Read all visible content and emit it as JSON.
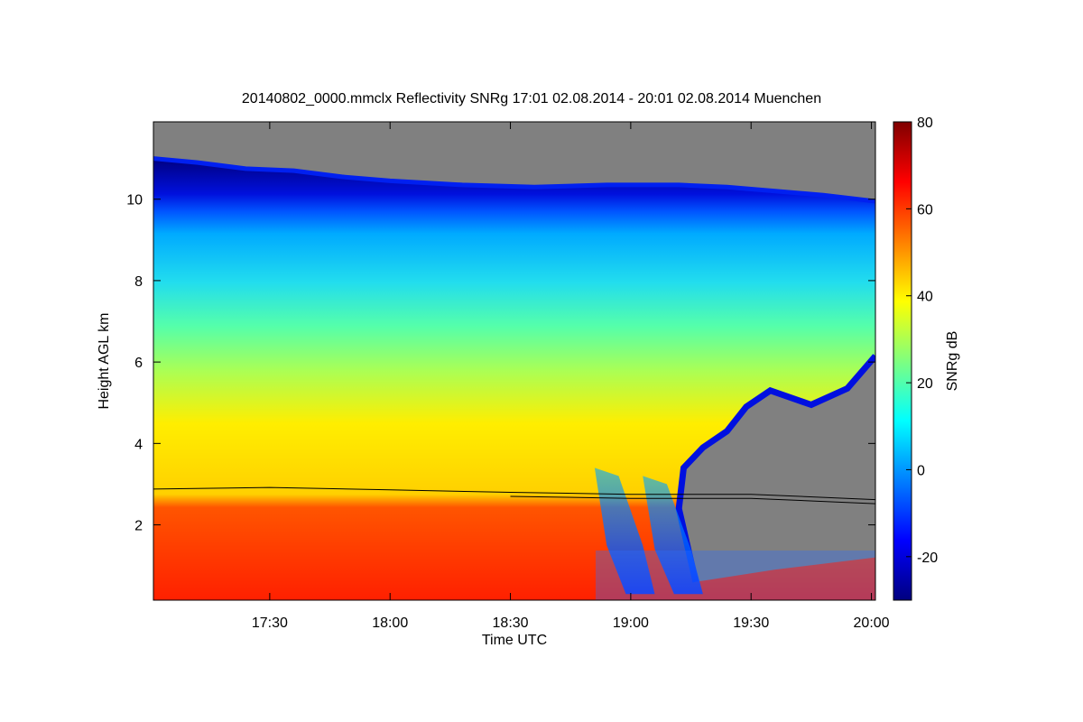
{
  "chart_data": {
    "type": "heatmap",
    "title": "20140802_0000.mmclx Reflectivity SNRg   17:01 02.08.2014 - 20:01 02.08.2014 Muenchen",
    "xlabel": "Time UTC",
    "ylabel": "Height AGL km",
    "colorbar_label": "SNRg dB",
    "x_ticks": [
      "17:30",
      "18:00",
      "18:30",
      "19:00",
      "19:30",
      "20:00"
    ],
    "x_tick_hours": [
      17.5,
      18.0,
      18.5,
      19.0,
      19.5,
      20.0
    ],
    "xlim_hours": [
      17.0167,
      20.0167
    ],
    "y_ticks": [
      2,
      4,
      6,
      8,
      10
    ],
    "ylim": [
      0.15,
      11.9
    ],
    "colorbar_ticks": [
      -20,
      0,
      20,
      40,
      60,
      80
    ],
    "colorbar_range": [
      -30,
      80
    ],
    "no_data_color": "#808080",
    "colormap": [
      "#00007f",
      "#0000ff",
      "#007fff",
      "#00ffff",
      "#7fff7f",
      "#ffff00",
      "#ff7f00",
      "#ff0000",
      "#7f0000"
    ],
    "echo_top_km": [
      {
        "t": 17.0167,
        "h": 11.0
      },
      {
        "t": 17.2,
        "h": 10.9
      },
      {
        "t": 17.4,
        "h": 10.75
      },
      {
        "t": 17.6,
        "h": 10.7
      },
      {
        "t": 17.8,
        "h": 10.55
      },
      {
        "t": 18.0,
        "h": 10.45
      },
      {
        "t": 18.3,
        "h": 10.35
      },
      {
        "t": 18.6,
        "h": 10.3
      },
      {
        "t": 18.9,
        "h": 10.35
      },
      {
        "t": 19.2,
        "h": 10.35
      },
      {
        "t": 19.4,
        "h": 10.3
      },
      {
        "t": 19.6,
        "h": 10.2
      },
      {
        "t": 19.8,
        "h": 10.1
      },
      {
        "t": 20.0167,
        "h": 9.95
      }
    ],
    "cloud_base_km": [
      {
        "t": 19.75,
        "h": 4.95
      },
      {
        "t": 19.9,
        "h": 5.35
      },
      {
        "t": 20.0167,
        "h": 6.15
      }
    ],
    "melting_layer_km": [
      {
        "t": 17.0167,
        "h": 2.88
      },
      {
        "t": 17.5,
        "h": 2.92
      },
      {
        "t": 18.0,
        "h": 2.86
      },
      {
        "t": 18.5,
        "h": 2.8
      },
      {
        "t": 19.0,
        "h": 2.75
      },
      {
        "t": 19.5,
        "h": 2.75
      },
      {
        "t": 20.0167,
        "h": 2.62
      }
    ]
  }
}
